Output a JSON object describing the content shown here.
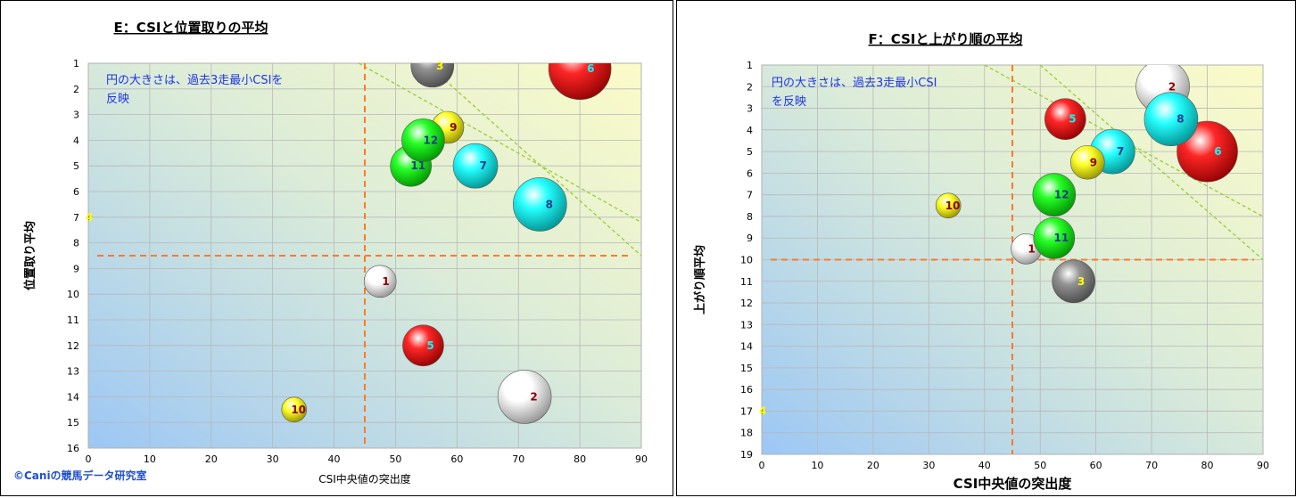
{
  "chart_data": [
    {
      "type": "scatter",
      "title": "E：CSIと位置取りの平均",
      "xlabel": "CSI中央値の突出度",
      "ylabel": "位置取り平均",
      "xlim": [
        0,
        90
      ],
      "ylim": [
        16,
        1
      ],
      "y_reversed": true,
      "xticks": [
        0,
        10,
        20,
        30,
        40,
        50,
        60,
        70,
        80,
        90
      ],
      "yticks": [
        1,
        2,
        3,
        4,
        5,
        6,
        7,
        8,
        9,
        10,
        11,
        12,
        13,
        14,
        15,
        16
      ],
      "annotation": "円の大きさは、過去3走最小CSIを反映",
      "annotation_lines": [
        "円の大きさは、過去3走最小CSIを",
        "反映"
      ],
      "ref_lines": {
        "x": 45,
        "y": 8.5
      },
      "trend_lines": [
        [
          [
            44,
            1
          ],
          [
            90,
            7.2
          ]
        ],
        [
          [
            55,
            1
          ],
          [
            90,
            8.5
          ]
        ]
      ],
      "points": [
        {
          "label": "1",
          "x": 47.5,
          "y": 9.5,
          "size": 18,
          "color": "#ffffff",
          "label_color": "#8b0000"
        },
        {
          "label": "2",
          "x": 71,
          "y": 14,
          "size": 30,
          "color": "#ffffff",
          "label_color": "#8b0000"
        },
        {
          "label": "3",
          "x": 56,
          "y": 1.1,
          "size": 24,
          "color": "#808080",
          "label_color": "#ffff00"
        },
        {
          "label": "4",
          "x": 0,
          "y": 7,
          "size": 3,
          "color": "#606060",
          "label_color": "#ffff00"
        },
        {
          "label": "5",
          "x": 54.5,
          "y": 12,
          "size": 23,
          "color": "#ff0000",
          "label_color": "#00ffff"
        },
        {
          "label": "6",
          "x": 80,
          "y": 1.2,
          "size": 35,
          "color": "#ff0000",
          "label_color": "#00ffff"
        },
        {
          "label": "7",
          "x": 63,
          "y": 5,
          "size": 25,
          "color": "#00ffff",
          "label_color": "#1f3b8c"
        },
        {
          "label": "8",
          "x": 73.5,
          "y": 6.5,
          "size": 30,
          "color": "#00ffff",
          "label_color": "#1f3b8c"
        },
        {
          "label": "9",
          "x": 58.5,
          "y": 3.5,
          "size": 18,
          "color": "#ffff00",
          "label_color": "#8b0000"
        },
        {
          "label": "10",
          "x": 33.5,
          "y": 14.5,
          "size": 14,
          "color": "#ffff00",
          "label_color": "#8b0000"
        },
        {
          "label": "11",
          "x": 52.5,
          "y": 5,
          "size": 23,
          "color": "#00ff00",
          "label_color": "#1f3b8c"
        },
        {
          "label": "12",
          "x": 54.5,
          "y": 4,
          "size": 24,
          "color": "#00ff00",
          "label_color": "#1f3b8c"
        }
      ],
      "copyright": "©Caniの競馬データ研究室"
    },
    {
      "type": "scatter",
      "title": "F：CSIと上がり順の平均",
      "xlabel": "CSI中央値の突出度",
      "ylabel": "上がり順平均",
      "xlim": [
        0,
        90
      ],
      "ylim": [
        19,
        1
      ],
      "y_reversed": true,
      "xticks": [
        0,
        10,
        20,
        30,
        40,
        50,
        60,
        70,
        80,
        90
      ],
      "yticks": [
        1,
        2,
        3,
        4,
        5,
        6,
        7,
        8,
        9,
        10,
        11,
        12,
        13,
        14,
        15,
        16,
        17,
        18,
        19
      ],
      "annotation": "円の大きさは、過去3走最小CSIを反映",
      "annotation_lines": [
        "円の大きさは、過去3走最小CSI",
        "を反映"
      ],
      "ref_lines": {
        "x": 45,
        "y": 10
      },
      "trend_lines": [
        [
          [
            40,
            1
          ],
          [
            90,
            8
          ]
        ],
        [
          [
            50,
            1
          ],
          [
            90,
            10
          ]
        ]
      ],
      "points": [
        {
          "label": "1",
          "x": 47.5,
          "y": 9.5,
          "size": 17,
          "color": "#ffffff",
          "label_color": "#8b0000"
        },
        {
          "label": "2",
          "x": 72,
          "y": 2,
          "size": 30,
          "color": "#ffffff",
          "label_color": "#8b0000"
        },
        {
          "label": "3",
          "x": 56,
          "y": 11,
          "size": 24,
          "color": "#808080",
          "label_color": "#ffff00"
        },
        {
          "label": "4",
          "x": 0,
          "y": 17,
          "size": 3,
          "color": "#606060",
          "label_color": "#ffff00"
        },
        {
          "label": "5",
          "x": 54.5,
          "y": 3.5,
          "size": 23,
          "color": "#ff0000",
          "label_color": "#00ffff"
        },
        {
          "label": "6",
          "x": 80,
          "y": 5,
          "size": 34,
          "color": "#ff0000",
          "label_color": "#00ffff"
        },
        {
          "label": "7",
          "x": 63,
          "y": 5,
          "size": 25,
          "color": "#00ffff",
          "label_color": "#1f3b8c"
        },
        {
          "label": "8",
          "x": 73.5,
          "y": 3.5,
          "size": 30,
          "color": "#00ffff",
          "label_color": "#1f3b8c"
        },
        {
          "label": "9",
          "x": 58.5,
          "y": 5.5,
          "size": 19,
          "color": "#ffff00",
          "label_color": "#8b0000"
        },
        {
          "label": "10",
          "x": 33.5,
          "y": 7.5,
          "size": 14,
          "color": "#ffff00",
          "label_color": "#8b0000"
        },
        {
          "label": "11",
          "x": 52.5,
          "y": 9,
          "size": 23,
          "color": "#00ff00",
          "label_color": "#1f3b8c"
        },
        {
          "label": "12",
          "x": 52.5,
          "y": 7,
          "size": 24,
          "color": "#00ff00",
          "label_color": "#1f3b8c"
        }
      ]
    }
  ]
}
